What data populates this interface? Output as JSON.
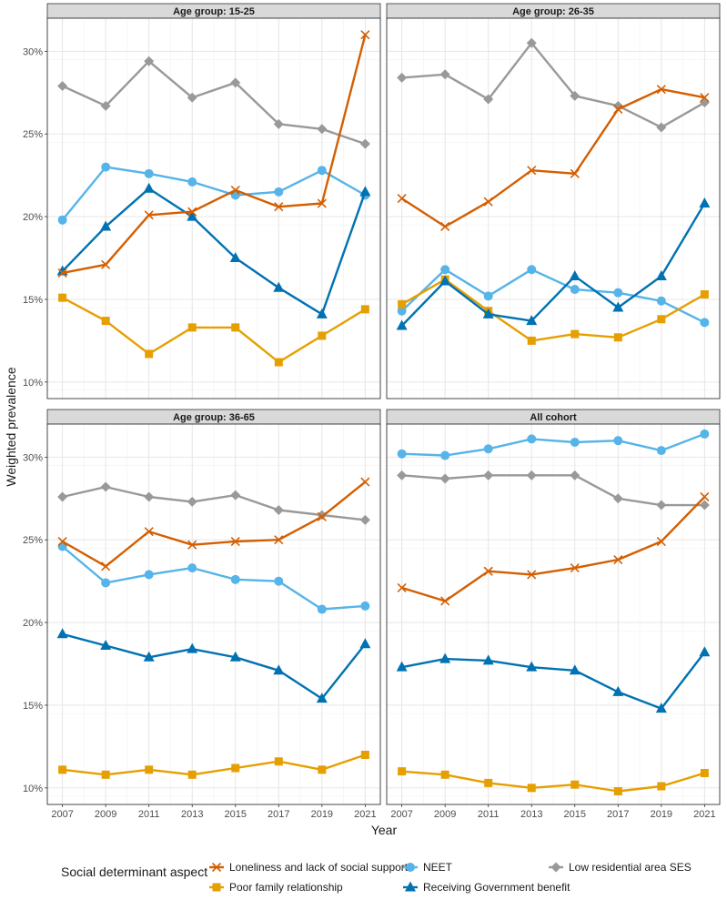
{
  "chart_data": {
    "type": "line",
    "xlabel": "Year",
    "ylabel": "Weighted prevalence",
    "x": [
      2007,
      2009,
      2011,
      2013,
      2015,
      2017,
      2019,
      2021
    ],
    "x_tick_labels": [
      "2007",
      "2009",
      "2011",
      "2013",
      "2015",
      "2017",
      "2019",
      "2021"
    ],
    "ylim": [
      9.0,
      32.0
    ],
    "y_ticks": [
      10,
      15,
      20,
      25,
      30
    ],
    "y_tick_labels": [
      "10%",
      "15%",
      "20%",
      "25%",
      "30%"
    ],
    "grid": true,
    "legend": {
      "title": "Social determinant aspect",
      "placement": "bottom"
    },
    "series_styles": [
      {
        "name": "Loneliness and lack of social support",
        "color": "#d55e00",
        "marker": "x"
      },
      {
        "name": "Poor family relationship",
        "color": "#e69f00",
        "marker": "square"
      },
      {
        "name": "NEET",
        "color": "#56b4e9",
        "marker": "circle"
      },
      {
        "name": "Receiving Government benefit",
        "color": "#0072b2",
        "marker": "triangle"
      },
      {
        "name": "Low residential area SES",
        "color": "#999999",
        "marker": "diamond"
      }
    ],
    "panels": [
      {
        "title": "Age group: 15-25",
        "series": [
          {
            "name": "Low residential area SES",
            "values": [
              27.9,
              26.7,
              29.4,
              27.2,
              28.1,
              25.6,
              25.3,
              24.4
            ]
          },
          {
            "name": "NEET",
            "values": [
              19.8,
              23.0,
              22.6,
              22.1,
              21.3,
              21.5,
              22.8,
              21.3
            ]
          },
          {
            "name": "Poor family relationship",
            "values": [
              15.1,
              13.7,
              11.7,
              13.3,
              13.3,
              11.2,
              12.8,
              14.4
            ]
          },
          {
            "name": "Receiving Government benefit",
            "values": [
              16.7,
              19.4,
              21.7,
              20.0,
              17.5,
              15.7,
              14.1,
              21.5
            ]
          },
          {
            "name": "Loneliness and lack of social support",
            "values": [
              16.6,
              17.1,
              20.1,
              20.3,
              21.6,
              20.6,
              20.8,
              31.0
            ]
          }
        ]
      },
      {
        "title": "Age group: 26-35",
        "series": [
          {
            "name": "Low residential area SES",
            "values": [
              28.4,
              28.6,
              27.1,
              30.5,
              27.3,
              26.7,
              25.4,
              26.9
            ]
          },
          {
            "name": "NEET",
            "values": [
              14.3,
              16.8,
              15.2,
              16.8,
              15.6,
              15.4,
              14.9,
              13.6
            ]
          },
          {
            "name": "Poor family relationship",
            "values": [
              14.7,
              16.2,
              14.3,
              12.5,
              12.9,
              12.7,
              13.8,
              15.3
            ]
          },
          {
            "name": "Receiving Government benefit",
            "values": [
              13.4,
              16.1,
              14.1,
              13.7,
              16.4,
              14.5,
              16.4,
              20.8
            ]
          },
          {
            "name": "Loneliness and lack of social support",
            "values": [
              21.1,
              19.4,
              20.9,
              22.8,
              22.6,
              26.5,
              27.7,
              27.2
            ]
          }
        ]
      },
      {
        "title": "Age group: 36-65",
        "series": [
          {
            "name": "Low residential area SES",
            "values": [
              27.6,
              28.2,
              27.6,
              27.3,
              27.7,
              26.8,
              26.5,
              26.2
            ]
          },
          {
            "name": "NEET",
            "values": [
              24.6,
              22.4,
              22.9,
              23.3,
              22.6,
              22.5,
              20.8,
              21.0
            ]
          },
          {
            "name": "Poor family relationship",
            "values": [
              11.1,
              10.8,
              11.1,
              10.8,
              11.2,
              11.6,
              11.1,
              12.0
            ]
          },
          {
            "name": "Receiving Government benefit",
            "values": [
              19.3,
              18.6,
              17.9,
              18.4,
              17.9,
              17.1,
              15.4,
              18.7
            ]
          },
          {
            "name": "Loneliness and lack of social support",
            "values": [
              24.9,
              23.4,
              25.5,
              24.7,
              24.9,
              25.0,
              26.4,
              28.5
            ]
          }
        ]
      },
      {
        "title": "All cohort",
        "series": [
          {
            "name": "Low residential area SES",
            "values": [
              28.9,
              28.7,
              28.9,
              28.9,
              28.9,
              27.5,
              27.1,
              27.1
            ]
          },
          {
            "name": "NEET",
            "values": [
              30.2,
              30.1,
              30.5,
              31.1,
              30.9,
              31.0,
              30.4,
              31.4
            ]
          },
          {
            "name": "Poor family relationship",
            "values": [
              11.0,
              10.8,
              10.3,
              10.0,
              10.2,
              9.8,
              10.1,
              10.9
            ]
          },
          {
            "name": "Receiving Government benefit",
            "values": [
              17.3,
              17.8,
              17.7,
              17.3,
              17.1,
              15.8,
              14.8,
              18.2
            ]
          },
          {
            "name": "Loneliness and lack of social support",
            "values": [
              22.1,
              21.3,
              23.1,
              22.9,
              23.3,
              23.8,
              24.9,
              27.6
            ]
          }
        ]
      }
    ]
  }
}
